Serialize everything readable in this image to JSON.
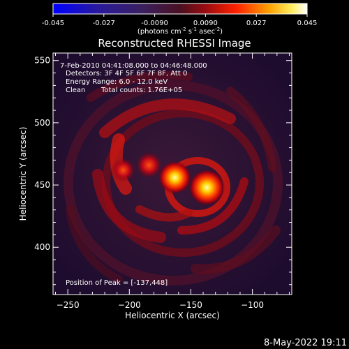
{
  "chart_data": {
    "type": "heatmap",
    "title": "Reconstructed RHESSI Image",
    "xlabel": "Heliocentric X (arcsec)",
    "ylabel": "Heliocentric Y (arcsec)",
    "xlim": [
      -262,
      -68
    ],
    "ylim": [
      362,
      556
    ],
    "xticks": [
      -250,
      -200,
      -150,
      -100
    ],
    "yticks": [
      400,
      450,
      500,
      550
    ],
    "colorbar": {
      "ticks": [
        "-0.045",
        "-0.027",
        "-0.0090",
        "0.0090",
        "0.027",
        "0.045"
      ],
      "units_main": "(photons cm",
      "units_exp1": "-2",
      "units_s": " s",
      "units_exp2": "-1",
      "units_asec": " asec",
      "units_exp3": "-2",
      "units_close": ")",
      "colors": [
        "#0000ff",
        "#000000",
        "#800000",
        "#ff3000",
        "#ffa000",
        "#ffffff"
      ]
    },
    "annotations": {
      "line1": "7-Feb-2010 04:41:08.000 to 04:46:48.000",
      "line2": "Detectors: 3F 4F 5F 6F 7F 8F, Att 0",
      "line3": "Energy Range: 6.0 - 12.0 keV",
      "line4_a": "Clean",
      "line4_b": "Total counts: 1.76E+05",
      "peak": "Position of Peak = [-137,448]"
    },
    "sources": [
      {
        "x": -137,
        "y": 448,
        "intensity": 1.0
      },
      {
        "x": -163,
        "y": 456,
        "intensity": 0.85
      },
      {
        "x": -184,
        "y": 466,
        "intensity": 0.55
      },
      {
        "x": -205,
        "y": 462,
        "intensity": 0.45
      }
    ],
    "timestamp": "8-May-2022 19:11"
  }
}
